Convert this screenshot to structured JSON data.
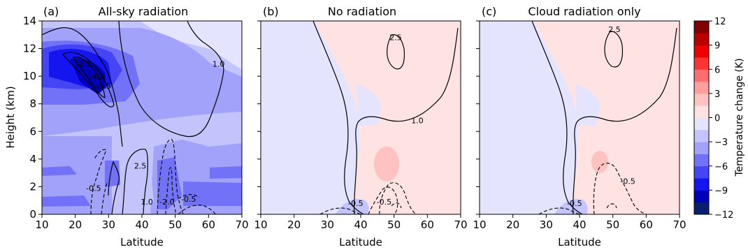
{
  "chart_data": [
    {
      "type": "heatmap",
      "panel_tag": "(a)",
      "title": "All-sky radiation",
      "xlabel": "Latitude",
      "ylabel": "Height (km)",
      "xlim": [
        10,
        70
      ],
      "ylim": [
        0,
        14
      ],
      "xticks": [
        10,
        20,
        30,
        40,
        50,
        60,
        70
      ],
      "yticks": [
        0,
        2,
        4,
        6,
        8,
        10,
        12,
        14
      ],
      "contour_labels": [
        {
          "text": "-2.5",
          "x": 22.5,
          "y": 10.7
        },
        {
          "text": "-4.0",
          "x": 26.5,
          "y": 9.8
        },
        {
          "text": "-5.5",
          "x": 28.5,
          "y": 9.1
        },
        {
          "text": "1.0",
          "x": 63,
          "y": 10.7
        },
        {
          "text": "2.5",
          "x": 39.5,
          "y": 3.3
        },
        {
          "text": "-0.5",
          "x": 25.5,
          "y": 1.7
        },
        {
          "text": "1.0",
          "x": 41.5,
          "y": 0.7
        },
        {
          "text": "-2.0",
          "x": 47.5,
          "y": 0.7
        },
        {
          "text": "-0.5",
          "x": 54,
          "y": 0.9
        }
      ]
    },
    {
      "type": "heatmap",
      "panel_tag": "(b)",
      "title": "No radiation",
      "xlabel": "Latitude",
      "xlim": [
        10,
        70
      ],
      "ylim": [
        0,
        14
      ],
      "xticks": [
        10,
        20,
        30,
        40,
        50,
        60,
        70
      ],
      "contour_labels": [
        {
          "text": "2.5",
          "x": 50.5,
          "y": 12.6
        },
        {
          "text": "1.0",
          "x": 57,
          "y": 6.6
        },
        {
          "text": "-0.5",
          "x": 38.5,
          "y": 0.6
        },
        {
          "text": "-0.5",
          "x": 47,
          "y": 0.7
        }
      ]
    },
    {
      "type": "heatmap",
      "panel_tag": "(c)",
      "title": "Cloud radiation only",
      "xlabel": "Latitude",
      "xlim": [
        10,
        70
      ],
      "ylim": [
        0,
        14
      ],
      "xticks": [
        10,
        20,
        30,
        40,
        50,
        60,
        70
      ],
      "contour_labels": [
        {
          "text": "2.5",
          "x": 50.5,
          "y": 13.2
        },
        {
          "text": "-0.5",
          "x": 54.5,
          "y": 2.2
        },
        {
          "text": "-0.5",
          "x": 38.5,
          "y": 0.6
        }
      ]
    }
  ],
  "colorbar": {
    "label": "Temperature change (K)",
    "ticks": [
      "12",
      "9",
      "6",
      "3",
      "0",
      "−3",
      "−6",
      "−9",
      "−12"
    ],
    "range": [
      -12,
      12
    ],
    "colors": [
      "#0a1f70",
      "#0000b8",
      "#1515f0",
      "#4545f5",
      "#7272f8",
      "#a2a2fb",
      "#c4c4fc",
      "#e4e4fe",
      "#ffe3e3",
      "#ffc2c2",
      "#ff9e9e",
      "#ff6e6e",
      "#ff3535",
      "#ee0000",
      "#bb0000",
      "#800000"
    ]
  }
}
